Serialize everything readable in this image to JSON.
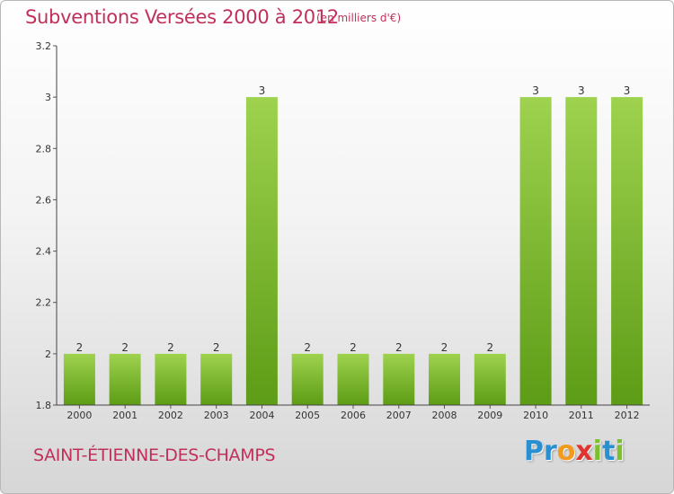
{
  "chart_data": {
    "type": "bar",
    "title": "Subventions Versées 2000 à 2012",
    "unit": "(en milliers d'€)",
    "categories": [
      "2000",
      "2001",
      "2002",
      "2003",
      "2004",
      "2005",
      "2006",
      "2007",
      "2008",
      "2009",
      "2010",
      "2011",
      "2012"
    ],
    "values": [
      2,
      2,
      2,
      2,
      3,
      2,
      2,
      2,
      2,
      2,
      3,
      3,
      3
    ],
    "data_labels": [
      "2",
      "2",
      "2",
      "2",
      "3",
      "2",
      "2",
      "2",
      "2",
      "2",
      "3",
      "3",
      "3"
    ],
    "ylim": [
      1.8,
      3.2
    ],
    "yticks": [
      1.8,
      2,
      2.2,
      2.4,
      2.6,
      2.8,
      3,
      3.2
    ],
    "ytick_labels": [
      "1.8",
      "2",
      "2.2",
      "2.4",
      "2.6",
      "2.8",
      "3",
      "3.2"
    ],
    "xlabel": "",
    "ylabel": "",
    "grid": false,
    "bar_color": "#7cc02e"
  },
  "footer": {
    "commune": "SAINT-ÉTIENNE-DES-CHAMPS",
    "logo_letters": [
      {
        "char": "P",
        "color": "#2a8fd0"
      },
      {
        "char": "r",
        "color": "#2a8fd0"
      },
      {
        "char": "o",
        "color": "#f39a1b"
      },
      {
        "char": "x",
        "color": "#e2342f"
      },
      {
        "char": "i",
        "color": "#7cc02e"
      },
      {
        "char": "t",
        "color": "#2a8fd0"
      },
      {
        "char": "i",
        "color": "#7cc02e"
      }
    ]
  }
}
